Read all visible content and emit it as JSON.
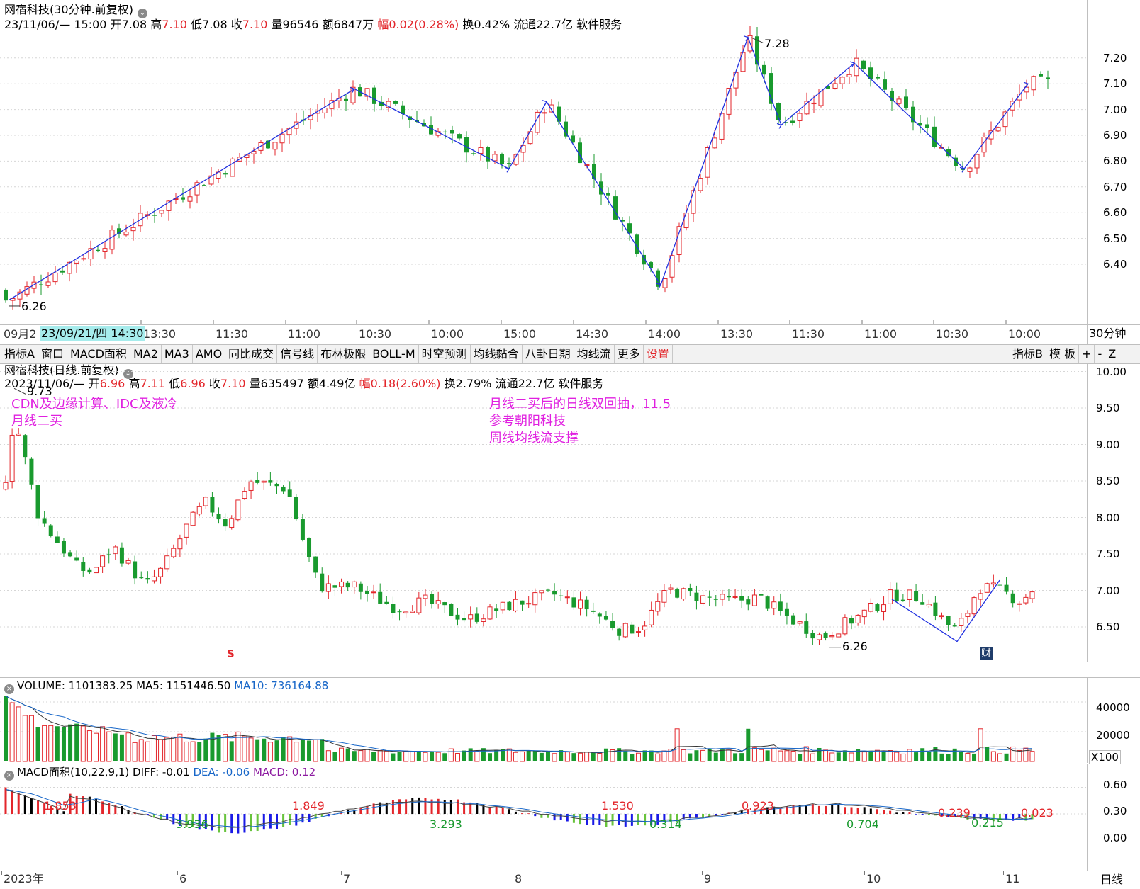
{
  "top_panel": {
    "title": "网宿科技(30分钟.前复权)",
    "bar_info": {
      "datetime": "23/11/06/— 15:00",
      "open_label": "开",
      "open": "7.08",
      "high_label": "高",
      "high": "7.10",
      "low_label": "低",
      "low": "7.08",
      "close_label": "收",
      "close": "7.10",
      "vol_label": "量",
      "vol": "96546",
      "amt_label": "额",
      "amt": "6847万",
      "chg_label": "幅",
      "chg": "0.02(0.28%)",
      "turn_label": "换",
      "turn": "0.42%",
      "float_label": "流通",
      "float": "22.7亿",
      "sector": "软件服务"
    },
    "y_ticks": [
      "7.20",
      "7.10",
      "7.00",
      "6.90",
      "6.80",
      "6.70",
      "6.60",
      "6.50",
      "6.40"
    ],
    "high_mark": "7.28",
    "low_mark": "6.26",
    "x_labels": [
      "09月2",
      "13:30",
      "11:30",
      "11:00",
      "10:30",
      "10:00",
      "15:00",
      "14:30",
      "14:00",
      "13:30",
      "11:30",
      "11:00",
      "10:30",
      "10:00"
    ],
    "cursor_label": "23/09/21/四 14:30",
    "period": "30分钟"
  },
  "toolbar": {
    "left": [
      "指标A",
      "窗口",
      "MACD面积",
      "MA2",
      "MA3",
      "AMO",
      "同比成交",
      "信号线",
      "布林极限",
      "BOLL-M",
      "时空预测",
      "均线黏合",
      "八卦日期",
      "均线流",
      "更多",
      "设置"
    ],
    "right": [
      "指标B",
      "模 板",
      "+",
      "-",
      "Z"
    ]
  },
  "daily_panel": {
    "title": "网宿科技(日线.前复权)",
    "bar_info": {
      "date": "2023/11/06/—",
      "open_label": "开",
      "open": "6.96",
      "high_label": "高",
      "high": "7.11",
      "low_label": "低",
      "low": "6.96",
      "close_label": "收",
      "close": "7.10",
      "vol_label": "量",
      "vol": "635497",
      "amt_label": "额",
      "amt": "4.49亿",
      "chg_label": "幅",
      "chg": "0.18(2.60%)",
      "turn_label": "换",
      "turn": "2.79%",
      "float_label": "流通",
      "float": "22.7亿",
      "sector": "软件服务"
    },
    "y_ticks": [
      "10.00",
      "9.50",
      "9.00",
      "8.50",
      "8.00",
      "7.50",
      "7.00",
      "6.50"
    ],
    "high_mark": "9.73",
    "low_mark": "6.26",
    "note_left": [
      "CDN及边缘计算、IDC及液冷",
      "月线二买"
    ],
    "note_mid": [
      "月线二买后的日线双回抽，11.5",
      "参考朝阳科技",
      "周线均线流支撑"
    ],
    "s_marker": "S",
    "cai_marker": "财"
  },
  "volume_panel": {
    "label": "VOLUME: 1101383.25",
    "ma5": "MA5: 1151446.50",
    "ma10": "MA10: 736164.88",
    "y_ticks": [
      "40000",
      "20000"
    ],
    "unit": "X100"
  },
  "macd_panel": {
    "label": "MACD面积(10,22,9,1)",
    "diff": "DIFF: -0.01",
    "dea": "DEA: -0.06",
    "macd": "MACD: 0.12",
    "y_ticks": [
      "0.60",
      "0.30",
      "0.00"
    ],
    "area_labels_red": [
      "1.853",
      "1.849",
      "1.530",
      "0.923",
      "0.239",
      "0.023"
    ],
    "area_labels_green": [
      "3.936",
      "3.293",
      "0.314",
      "0.704",
      "0.215"
    ]
  },
  "bottom_axis": {
    "labels": [
      "2023年",
      "6",
      "7",
      "8",
      "9",
      "10",
      "11"
    ],
    "period": "日线"
  },
  "colors": {
    "up": "#e3262b",
    "down": "#199a2e",
    "grid": "#bfbfbf",
    "wave": "#2030e0",
    "note": "#e020e0",
    "macd_neg": "#1a1ae6"
  },
  "chart_data": [
    {
      "type": "candlestick",
      "title": "网宿科技(30分钟.前复权)",
      "ylim": [
        6.26,
        7.28
      ],
      "annotations": [
        "7.28",
        "6.26"
      ],
      "series": [
        {
          "name": "zigzag",
          "values": [
            6.26,
            7.08,
            6.77,
            7.03,
            6.32,
            7.28,
            6.94,
            7.18,
            6.77,
            7.1
          ]
        }
      ]
    },
    {
      "type": "candlestick",
      "title": "网宿科技(日线.前复权)",
      "ylim": [
        6.26,
        9.73
      ],
      "annotations": [
        "9.73",
        "6.26"
      ]
    },
    {
      "type": "bar",
      "title": "VOLUME",
      "series": [
        {
          "name": "MA5",
          "values": [
            1151446.5
          ]
        },
        {
          "name": "MA10",
          "values": [
            736164.88
          ]
        }
      ]
    },
    {
      "type": "bar",
      "title": "MACD面积(10,22,9,1)",
      "series": [
        {
          "name": "DIFF",
          "values": [
            -0.01
          ]
        },
        {
          "name": "DEA",
          "values": [
            -0.06
          ]
        },
        {
          "name": "MACD",
          "values": [
            0.12
          ]
        }
      ]
    }
  ]
}
